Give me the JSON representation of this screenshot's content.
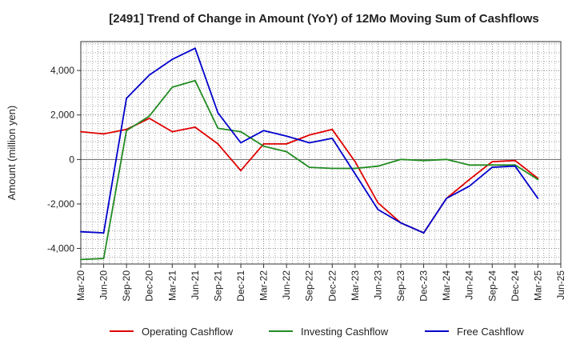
{
  "chart_data": {
    "type": "line",
    "title": "[2491]  Trend of Change in Amount (YoY) of 12Mo Moving Sum of Cashflows",
    "ylabel": "Amount (million yen)",
    "xlabel": "",
    "ylim": [
      -4700,
      5300
    ],
    "yticks": [
      -4000,
      -2000,
      0,
      2000,
      4000
    ],
    "ytick_labels": [
      "-4,000",
      "-2,000",
      "0",
      "2,000",
      "4,000"
    ],
    "categories": [
      "Mar-20",
      "Jun-20",
      "Sep-20",
      "Dec-20",
      "Mar-21",
      "Jun-21",
      "Sep-21",
      "Dec-21",
      "Mar-22",
      "Jun-22",
      "Sep-22",
      "Dec-22",
      "Mar-23",
      "Jun-23",
      "Sep-23",
      "Dec-23",
      "Mar-24",
      "Jun-24",
      "Sep-24",
      "Dec-24",
      "Mar-25",
      "Jun-25"
    ],
    "grid": true,
    "legend_position": "bottom",
    "series": [
      {
        "name": "Operating Cashflow",
        "color": "#e00000",
        "values": [
          1250,
          1150,
          1350,
          1850,
          1250,
          1450,
          700,
          -500,
          700,
          700,
          1100,
          1350,
          -100,
          -1950,
          -2850,
          -3300,
          -1750,
          -900,
          -100,
          -50,
          -850,
          null
        ]
      },
      {
        "name": "Investing Cashflow",
        "color": "#228b22",
        "values": [
          -4500,
          -4450,
          1300,
          1950,
          3250,
          3550,
          1400,
          1250,
          600,
          350,
          -350,
          -400,
          -400,
          -300,
          0,
          -50,
          0,
          -250,
          -250,
          -250,
          -900,
          null
        ]
      },
      {
        "name": "Free Cashflow",
        "color": "#0000cc",
        "values": [
          -3250,
          -3300,
          2750,
          3800,
          4500,
          5000,
          2100,
          750,
          1300,
          1050,
          750,
          950,
          -650,
          -2250,
          -2850,
          -3300,
          -1750,
          -1200,
          -350,
          -300,
          -1750,
          null
        ]
      }
    ]
  }
}
